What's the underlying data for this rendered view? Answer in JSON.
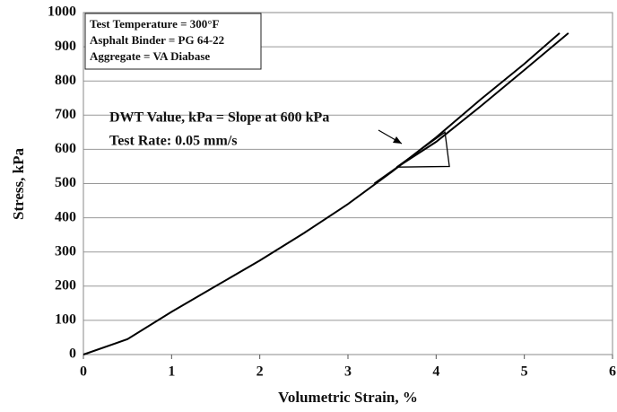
{
  "chart_data": {
    "type": "line",
    "xlabel": "Volumetric Strain, %",
    "ylabel": "Stress, kPa",
    "annotations": [
      "Test Temperature = 300°F",
      "Asphalt Binder = PG 64-22",
      "Aggregate = VA Diabase"
    ],
    "note": [
      "DWT Value, kPa = Slope at 600 kPa",
      "Test Rate: 0.05 mm/s"
    ],
    "series": [
      {
        "color": "#000000",
        "x": [
          0,
          0.5,
          1,
          1.5,
          2,
          2.5,
          3,
          3.5,
          4,
          4.5,
          5,
          5.4
        ],
        "values": [
          0,
          45,
          125,
          200,
          275,
          355,
          440,
          535,
          635,
          745,
          850,
          940
        ]
      },
      {
        "color": "#000000",
        "x": [
          3.3,
          3.6,
          4,
          4.5,
          5,
          5.5
        ],
        "values": [
          500,
          555,
          622,
          725,
          832,
          940
        ]
      }
    ],
    "slope_triangle": {
      "x": [
        3.55,
        4.15,
        4.1,
        3.55
      ],
      "y": [
        548,
        550,
        650,
        548
      ]
    },
    "xlim": [
      0,
      6
    ],
    "xticks": [
      0,
      1,
      2,
      3,
      4,
      5,
      6
    ],
    "ylim": [
      0,
      1000
    ],
    "yticks": [
      0,
      100,
      200,
      300,
      400,
      500,
      600,
      700,
      800,
      900,
      1000
    ],
    "grid": true
  }
}
